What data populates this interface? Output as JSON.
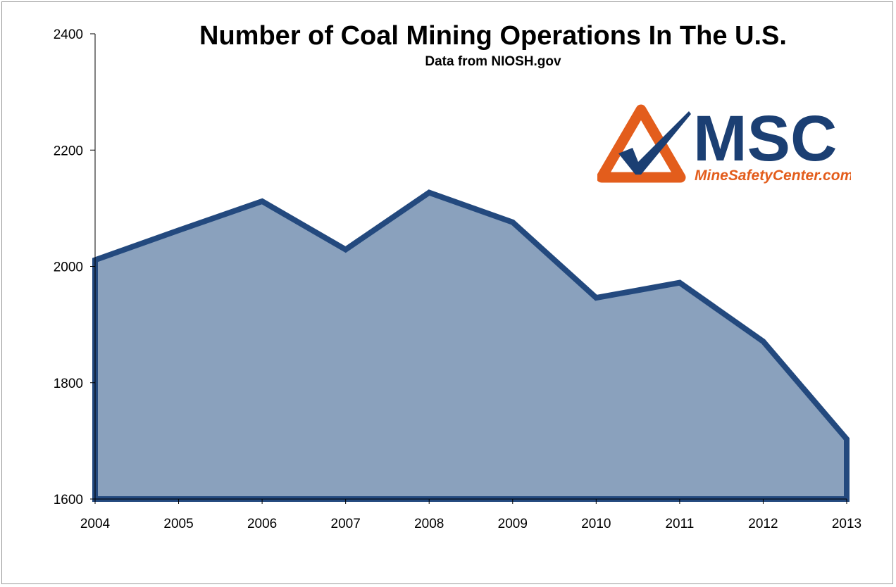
{
  "chart_data": {
    "type": "area",
    "title": "Number of Coal Mining Operations In The U.S.",
    "subtitle": "Data from NIOSH.gov",
    "xlabel": "",
    "ylabel": "",
    "categories": [
      "2004",
      "2005",
      "2006",
      "2007",
      "2008",
      "2009",
      "2010",
      "2011",
      "2012",
      "2013"
    ],
    "series": [
      {
        "values": [
          2011,
          2062,
          2112,
          2029,
          2127,
          2076,
          1946,
          1972,
          1871,
          1703
        ]
      }
    ],
    "ylim": [
      1600,
      2400
    ],
    "yticks": [
      1600,
      1800,
      2000,
      2200,
      2400
    ],
    "grid": false,
    "legend": "none",
    "colors": {
      "fill": "#8aa1bd",
      "line": "#23497e",
      "axis": "#000000"
    }
  },
  "logo": {
    "text": "MSC",
    "tagline": "MineSafetyCenter.com",
    "colors": {
      "orange": "#e35d1c",
      "navy": "#1b3f73"
    },
    "icon": "checkmark-triangle-icon"
  }
}
